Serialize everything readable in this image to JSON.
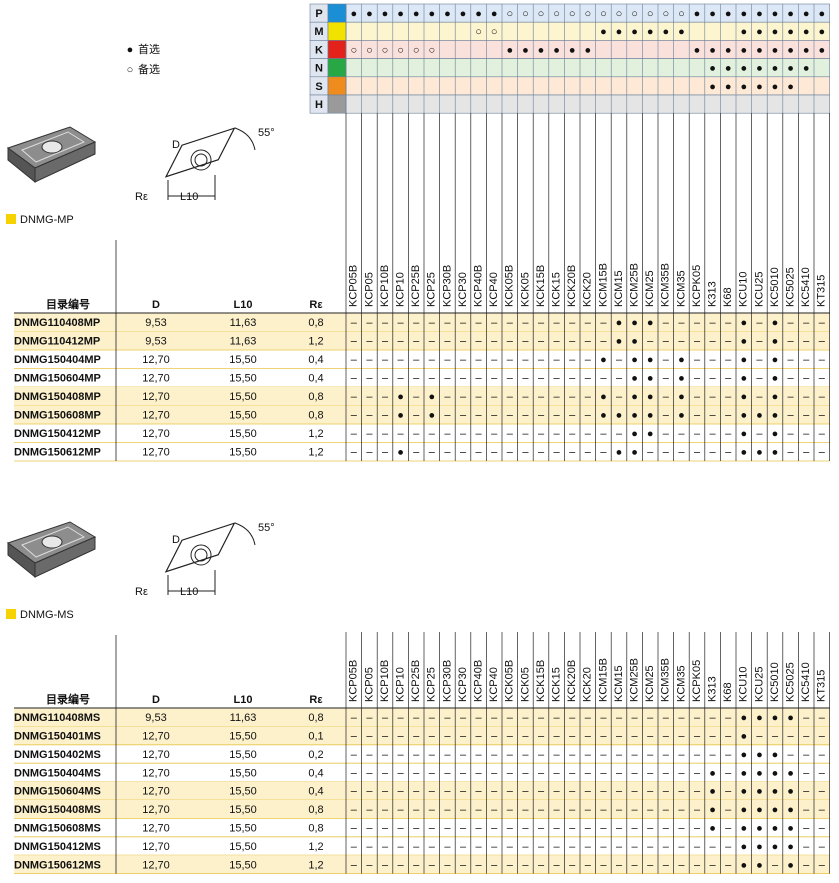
{
  "legend": [
    {
      "symbol": "●",
      "label": "首选"
    },
    {
      "symbol": "○",
      "label": "备选"
    }
  ],
  "grades": [
    "KCP05B",
    "KCP05",
    "KCP10B",
    "KCP10",
    "KCP25B",
    "KCP25",
    "KCP30B",
    "KCP30",
    "KCP40B",
    "KCP40",
    "KCK05B",
    "KCK05",
    "KCK15B",
    "KCK15",
    "KCK20B",
    "KCK20",
    "KCM15B",
    "KCM15",
    "KCM25B",
    "KCM25",
    "KCM35B",
    "KCM35",
    "KCPK05",
    "K313",
    "K68",
    "KCU10",
    "KCU25",
    "KC5010",
    "KC5025",
    "KC5410",
    "KT315"
  ],
  "iso": [
    {
      "letter": "P",
      "color": "#1a8fd6",
      "bg": "#dde8f6",
      "cells": "●●●●●●●●●●○○○○○○○○○○○○●●●●●●●●●"
    },
    {
      "letter": "M",
      "color": "#f2e200",
      "bg": "#fcf5cf",
      "cells": "        ○○      ●●●●●●   ●●●●●●"
    },
    {
      "letter": "K",
      "color": "#e3221b",
      "bg": "#fbe1dc",
      "cells": "○○○○○○    ●●●●●●      ●●●●●●●●●"
    },
    {
      "letter": "N",
      "color": "#27a844",
      "bg": "#e1f1dd",
      "cells": "                       ●●●●●●● "
    },
    {
      "letter": "S",
      "color": "#f08c1e",
      "bg": "#fde9d6",
      "cells": "                       ●●●●●●  "
    },
    {
      "letter": "H",
      "color": "#9a9a9a",
      "bg": "#e5e5e5",
      "cells": "                               "
    }
  ],
  "sections": [
    {
      "title": "DNMG-MP",
      "diagram": {
        "d": "D",
        "angle": "55°",
        "radius": "Rε",
        "length": "L10"
      },
      "headers": [
        "目录编号",
        "D",
        "L10",
        "Rε"
      ],
      "rows": [
        {
          "id": "DNMG110408MP",
          "d": "9,53",
          "l10": "11,63",
          "r": "0,8",
          "cells": "–––––––––––––––––●●●–––––●–●–––"
        },
        {
          "id": "DNMG110412MP",
          "d": "9,53",
          "l10": "11,63",
          "r": "1,2",
          "cells": "–––––––––––––––––●●––––––●–●–––"
        },
        {
          "id": "DNMG150404MP",
          "d": "12,70",
          "l10": "15,50",
          "r": "0,4",
          "cells": "––––––––––––––––●–●●–●–––●–●–––"
        },
        {
          "id": "DNMG150604MP",
          "d": "12,70",
          "l10": "15,50",
          "r": "0,4",
          "cells": "––––––––––––––––––●●–●–––●–●–––"
        },
        {
          "id": "DNMG150408MP",
          "d": "12,70",
          "l10": "15,50",
          "r": "0,8",
          "cells": "–––●–●––––––––––●–●●–●–––●–●–––"
        },
        {
          "id": "DNMG150608MP",
          "d": "12,70",
          "l10": "15,50",
          "r": "0,8",
          "cells": "–––●–●––––––––––●●●●–●–––●●●–––"
        },
        {
          "id": "DNMG150412MP",
          "d": "12,70",
          "l10": "15,50",
          "r": "1,2",
          "cells": "––––––––––––––––––●●–––––●–●–––"
        },
        {
          "id": "DNMG150612MP",
          "d": "12,70",
          "l10": "15,50",
          "r": "1,2",
          "cells": "–––●–––––––––––––●●––––––●●●–––"
        }
      ]
    },
    {
      "title": "DNMG-MS",
      "diagram": {
        "d": "D",
        "angle": "55°",
        "radius": "Rε",
        "length": "L10"
      },
      "headers": [
        "目录编号",
        "D",
        "L10",
        "Rε"
      ],
      "rows": [
        {
          "id": "DNMG110408MS",
          "d": "9,53",
          "l10": "11,63",
          "r": "0,8",
          "cells": "–––––––––––––––––––––––––●●●●––"
        },
        {
          "id": "DNMG150401MS",
          "d": "12,70",
          "l10": "15,50",
          "r": "0,1",
          "cells": "–––––––––––––––––––––––––●–––––"
        },
        {
          "id": "DNMG150402MS",
          "d": "12,70",
          "l10": "15,50",
          "r": "0,2",
          "cells": "–––––––––––––––––––––––––●●●–––"
        },
        {
          "id": "DNMG150404MS",
          "d": "12,70",
          "l10": "15,50",
          "r": "0,4",
          "cells": "–––––––––––––––––––––––●–●●●●––"
        },
        {
          "id": "DNMG150604MS",
          "d": "12,70",
          "l10": "15,50",
          "r": "0,4",
          "cells": "–––––––––––––––––––––––●–●●●●––"
        },
        {
          "id": "DNMG150408MS",
          "d": "12,70",
          "l10": "15,50",
          "r": "0,8",
          "cells": "–––––––––––––––––––––––●–●●●●––"
        },
        {
          "id": "DNMG150608MS",
          "d": "12,70",
          "l10": "15,50",
          "r": "0,8",
          "cells": "–––––––––––––––––––––––●–●●●●––"
        },
        {
          "id": "DNMG150412MS",
          "d": "12,70",
          "l10": "15,50",
          "r": "1,2",
          "cells": "–––––––––––––––––––––––––●●●●––"
        },
        {
          "id": "DNMG150612MS",
          "d": "12,70",
          "l10": "15,50",
          "r": "1,2",
          "cells": "–––––––––––––––––––––––––●●–●––"
        }
      ]
    }
  ]
}
